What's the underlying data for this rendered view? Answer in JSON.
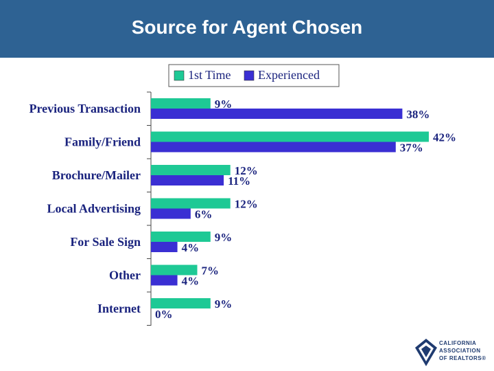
{
  "slide": {
    "title": "Source for Agent Chosen"
  },
  "logo": {
    "line1": "CALIFORNIA",
    "line2": "ASSOCIATION",
    "line3": "OF REALTORS®"
  },
  "chart_data": {
    "type": "bar",
    "orientation": "horizontal",
    "categories": [
      "Previous Transaction",
      "Family/Friend",
      "Brochure/Mailer",
      "Local Advertising",
      "For Sale Sign",
      "Other",
      "Internet"
    ],
    "series": [
      {
        "name": "1st Time",
        "color": "#1ec995",
        "values": [
          9,
          42,
          12,
          12,
          9,
          7,
          9
        ],
        "labels": [
          "9%",
          "42%",
          "12%",
          "12%",
          "9%",
          "7%",
          "9%"
        ]
      },
      {
        "name": "Experienced",
        "color": "#3a2fd3",
        "values": [
          38,
          37,
          11,
          6,
          4,
          4,
          0
        ],
        "labels": [
          "38%",
          "37%",
          "11%",
          "6%",
          "4%",
          "4%",
          "0%"
        ]
      }
    ],
    "xlim": [
      0,
      45
    ],
    "legend_position": "top",
    "title": "",
    "xlabel": "",
    "ylabel": ""
  }
}
